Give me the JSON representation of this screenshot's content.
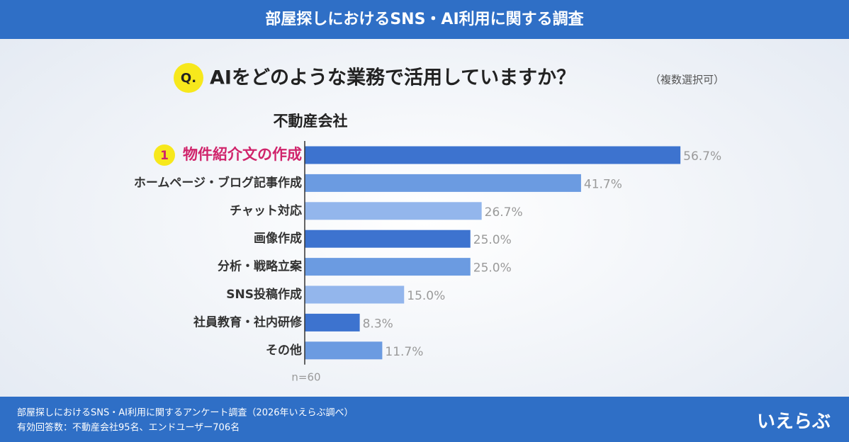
{
  "header": {
    "title": "部屋探しにおけるSNS・AI利用に関する調査"
  },
  "question": {
    "marker": "Q.",
    "text": "AIをどのような業務で活用していますか？",
    "note": "（複数選択可）"
  },
  "chart_data": {
    "type": "bar",
    "orientation": "horizontal",
    "title": "不動産会社",
    "categories": [
      "物件紹介文の作成",
      "ホームページ・ブログ記事作成",
      "チャット対応",
      "画像作成",
      "分析・戦略立案",
      "SNS投稿作成",
      "社員教育・社内研修",
      "その他"
    ],
    "values": [
      56.7,
      41.7,
      26.7,
      25.0,
      25.0,
      15.0,
      8.3,
      11.7
    ],
    "value_labels": [
      "56.7%",
      "41.7%",
      "26.7%",
      "25.0%",
      "25.0%",
      "15.0%",
      "8.3%",
      "11.7%"
    ],
    "colors": [
      "#3d73cf",
      "#6b9be1",
      "#93b6ec",
      "#3d73cf",
      "#6b9be1",
      "#93b6ec",
      "#3d73cf",
      "#6b9be1"
    ],
    "rank_label": "1",
    "highlight_color": "#d0246b",
    "xlim": [
      0,
      60
    ],
    "note": "n=60"
  },
  "footer": {
    "lines": [
      "部屋探しにおけるSNS・AI利用に関するアンケート調査（2026年いえらぶ調べ）",
      "有効回答数：不動産会社95名、エンドユーザー706名"
    ],
    "logo": "いえらぶ"
  }
}
